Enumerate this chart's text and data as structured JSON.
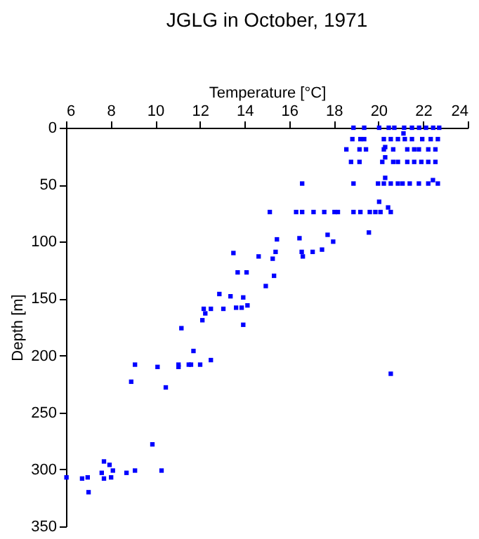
{
  "chart_data": {
    "type": "scatter",
    "title": "JGLG in October, 1971",
    "xlabel": "Temperature [°C]",
    "ylabel": "Depth [m]",
    "xlim": [
      6,
      24
    ],
    "xticks": [
      6,
      8,
      10,
      12,
      14,
      16,
      18,
      20,
      22,
      24
    ],
    "ylim": [
      350,
      0
    ],
    "yticks": [
      0,
      50,
      100,
      150,
      200,
      250,
      300,
      350
    ],
    "grid": false,
    "marker": "square",
    "series": [
      {
        "color": "#0000ff",
        "x": [
          18.88,
          19.36,
          20.03,
          20.46,
          20.71,
          21.15,
          21.5,
          21.82,
          22.13,
          22.45,
          22.72,
          21.12,
          18.83,
          19.19,
          19.36,
          20.24,
          20.55,
          20.87,
          21.18,
          21.5,
          21.96,
          22.34,
          22.66,
          18.56,
          19.15,
          19.44,
          20.24,
          20.66,
          21.29,
          21.6,
          21.81,
          22.23,
          22.55,
          20.3,
          20.3,
          18.77,
          19.15,
          20.17,
          20.66,
          20.87,
          21.29,
          21.6,
          21.92,
          22.23,
          22.55,
          20.3,
          16.58,
          18.88,
          19.98,
          20.24,
          20.55,
          20.87,
          21.08,
          21.4,
          21.81,
          22.23,
          22.66,
          22.44,
          20.03,
          20.43,
          15.13,
          16.31,
          16.58,
          17.09,
          17.57,
          18.03,
          18.18,
          18.88,
          19.19,
          19.61,
          19.86,
          20.09,
          20.55,
          19.57,
          17.72,
          15.45,
          16.46,
          17.97,
          17.47,
          15.39,
          16.56,
          17.05,
          14.63,
          16.61,
          15.26,
          15.32,
          13.5,
          13.69,
          14.09,
          14.95,
          12.87,
          13.37,
          13.94,
          14.13,
          13.62,
          13.87,
          12.17,
          12.49,
          13.05,
          12.24,
          12.11,
          13.94,
          11.17,
          11.71,
          12.49,
          9.09,
          11.04,
          11.5,
          11.6,
          12.01,
          10.1,
          11.04,
          8.92,
          10.47,
          9.87,
          7.7,
          7.95,
          8.1,
          9.09,
          10.28,
          7.6,
          8.71,
          6.02,
          6.97,
          8.02,
          6.72,
          7.7,
          7.01,
          20.55
        ],
        "values": [
          0,
          0,
          0,
          0,
          0,
          0,
          0,
          0,
          0,
          0,
          0,
          5,
          10,
          10,
          10,
          10,
          10,
          10,
          10,
          10,
          10,
          10,
          10,
          19,
          19,
          19,
          19,
          19,
          19,
          19,
          19,
          19,
          19,
          17,
          26,
          30,
          30,
          30,
          30,
          30,
          30,
          30,
          30,
          30,
          30,
          44,
          49,
          49,
          49,
          49,
          49,
          49,
          49,
          49,
          49,
          49,
          49,
          46,
          65,
          70,
          74,
          74,
          74,
          74,
          74,
          74,
          74,
          74,
          74,
          74,
          74,
          74,
          74,
          92,
          94,
          98,
          97,
          100,
          107,
          109,
          109,
          109,
          113,
          113,
          115,
          130,
          110,
          127,
          127,
          139,
          146,
          148,
          149,
          156,
          158,
          158,
          159,
          159,
          159,
          163,
          169,
          173,
          176,
          196,
          204,
          208,
          208,
          208,
          208,
          208,
          210,
          210,
          223,
          228,
          278,
          293,
          296,
          301,
          301,
          301,
          303,
          303,
          307,
          307,
          307,
          308,
          308,
          320,
          216
        ]
      }
    ]
  }
}
